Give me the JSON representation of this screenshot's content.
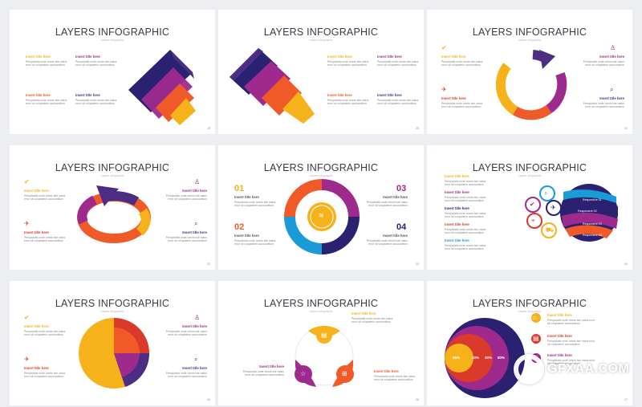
{
  "title": "LAYERS INFOGRAPHIC",
  "subtitle": "Layers Infographic",
  "insert_title": "Insert title here",
  "body_text": "Perspiciatis unde omnis iste natus error sit voluptatem accusantium",
  "slides": [
    {
      "page": "19"
    },
    {
      "page": "20"
    },
    {
      "page": "21"
    },
    {
      "page": "22"
    },
    {
      "page": "23"
    },
    {
      "page": "24"
    },
    {
      "page": "25"
    },
    {
      "page": "26"
    },
    {
      "page": "27"
    }
  ],
  "numbers": [
    "01",
    "02",
    "03",
    "04"
  ],
  "responsive": [
    "Responsive 01",
    "Responsive 02",
    "Responsive 03",
    "Responsive 04"
  ],
  "percents": [
    "55%",
    "30%",
    "30%",
    "80%"
  ],
  "colors": {
    "yellow": "#f6b21b",
    "orange": "#f05a28",
    "purple": "#4b2e83",
    "magenta": "#9e2a8e",
    "blue": "#1a9ad6",
    "red": "#d93a2b",
    "navy": "#2a2170"
  },
  "watermark": "GFXAA.COM",
  "icons": [
    "check-icon",
    "airplane-icon",
    "user-icon",
    "search-icon",
    "cart-icon",
    "location-icon",
    "layers-icon",
    "star-icon",
    "gift-icon",
    "home-icon",
    "document-icon",
    "heart-icon"
  ]
}
